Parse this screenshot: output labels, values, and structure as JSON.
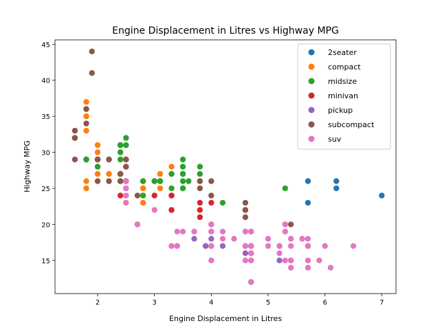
{
  "chart_data": {
    "type": "scatter",
    "title": "Engine Displacement in Litres vs Highway MPG",
    "xlabel": "Engine Displacement in Litres",
    "ylabel": "Highway MPG",
    "xlim": [
      1.25,
      7.25
    ],
    "ylim": [
      10.4,
      45.6
    ],
    "xticks": [
      2,
      3,
      4,
      5,
      6,
      7
    ],
    "yticks": [
      15,
      20,
      25,
      30,
      35,
      40,
      45
    ],
    "grid": false,
    "legend_position": "top-right",
    "series": [
      {
        "name": "2seater",
        "color": "#1f77b4",
        "points": [
          [
            5.7,
            26
          ],
          [
            5.7,
            23
          ],
          [
            6.2,
            26
          ],
          [
            6.2,
            25
          ],
          [
            7.0,
            24
          ]
        ]
      },
      {
        "name": "compact",
        "color": "#ff7f0e",
        "points": [
          [
            1.8,
            29
          ],
          [
            1.8,
            29
          ],
          [
            2.0,
            31
          ],
          [
            2.0,
            30
          ],
          [
            2.8,
            26
          ],
          [
            2.8,
            26
          ],
          [
            3.1,
            27
          ],
          [
            1.8,
            26
          ],
          [
            1.8,
            25
          ],
          [
            2.0,
            28
          ],
          [
            2.0,
            27
          ],
          [
            2.8,
            25
          ],
          [
            2.8,
            25
          ],
          [
            3.1,
            25
          ],
          [
            2.2,
            27
          ],
          [
            2.2,
            29
          ],
          [
            2.4,
            31
          ],
          [
            2.4,
            31
          ],
          [
            3.0,
            26
          ],
          [
            3.0,
            26
          ],
          [
            3.3,
            27
          ],
          [
            1.8,
            35
          ],
          [
            1.8,
            37
          ],
          [
            1.8,
            35
          ],
          [
            1.8,
            33
          ],
          [
            2.4,
            29
          ],
          [
            2.4,
            29
          ],
          [
            2.5,
            29
          ],
          [
            2.5,
            26
          ],
          [
            2.8,
            23
          ],
          [
            3.3,
            28
          ],
          [
            2.8,
            24
          ],
          [
            2.5,
            26
          ],
          [
            2.0,
            29
          ]
        ]
      },
      {
        "name": "midsize",
        "color": "#2ca02c",
        "points": [
          [
            2.8,
            24
          ],
          [
            3.1,
            26
          ],
          [
            4.2,
            23
          ],
          [
            2.4,
            27
          ],
          [
            2.4,
            30
          ],
          [
            3.1,
            26
          ],
          [
            3.5,
            29
          ],
          [
            3.6,
            26
          ],
          [
            1.8,
            29
          ],
          [
            1.8,
            29
          ],
          [
            2.0,
            28
          ],
          [
            2.0,
            29
          ],
          [
            2.4,
            26
          ],
          [
            2.4,
            26
          ],
          [
            2.5,
            26
          ],
          [
            2.5,
            25
          ],
          [
            3.3,
            27
          ],
          [
            3.3,
            25
          ],
          [
            3.5,
            27
          ],
          [
            3.5,
            25
          ],
          [
            2.4,
            31
          ],
          [
            2.4,
            31
          ],
          [
            2.5,
            32
          ],
          [
            2.5,
            31
          ],
          [
            3.0,
            26
          ],
          [
            3.5,
            27
          ],
          [
            3.5,
            25
          ],
          [
            2.2,
            29
          ],
          [
            2.4,
            29
          ],
          [
            3.0,
            26
          ],
          [
            3.8,
            28
          ],
          [
            3.8,
            26
          ],
          [
            5.3,
            25
          ],
          [
            3.5,
            26
          ],
          [
            3.5,
            28
          ],
          [
            2.0,
            29
          ],
          [
            2.8,
            26
          ],
          [
            3.8,
            27
          ],
          [
            1.8,
            29
          ],
          [
            2.4,
            27
          ],
          [
            3.1,
            26
          ]
        ]
      },
      {
        "name": "minivan",
        "color": "#d62728",
        "points": [
          [
            2.4,
            24
          ],
          [
            3.0,
            24
          ],
          [
            3.3,
            22
          ],
          [
            3.3,
            22
          ],
          [
            3.3,
            24
          ],
          [
            3.3,
            24
          ],
          [
            3.3,
            24
          ],
          [
            3.8,
            22
          ],
          [
            3.8,
            21
          ],
          [
            3.8,
            23
          ],
          [
            4.0,
            23
          ]
        ]
      },
      {
        "name": "pickup",
        "color": "#9467bd",
        "points": [
          [
            3.7,
            18
          ],
          [
            3.9,
            17
          ],
          [
            3.9,
            17
          ],
          [
            4.7,
            16
          ],
          [
            4.7,
            16
          ],
          [
            4.7,
            17
          ],
          [
            4.7,
            17
          ],
          [
            4.7,
            12
          ],
          [
            5.2,
            17
          ],
          [
            5.2,
            15
          ],
          [
            4.0,
            17
          ],
          [
            4.0,
            18
          ],
          [
            4.2,
            17
          ],
          [
            4.6,
            16
          ],
          [
            5.4,
            15
          ]
        ]
      },
      {
        "name": "subcompact",
        "color": "#8c564b",
        "points": [
          [
            3.8,
            26
          ],
          [
            3.8,
            25
          ],
          [
            4.0,
            26
          ],
          [
            4.0,
            24
          ],
          [
            4.6,
            21
          ],
          [
            4.6,
            22
          ],
          [
            4.6,
            23
          ],
          [
            4.6,
            22
          ],
          [
            5.4,
            20
          ],
          [
            1.6,
            33
          ],
          [
            1.6,
            32
          ],
          [
            1.6,
            32
          ],
          [
            1.6,
            29
          ],
          [
            1.6,
            32
          ],
          [
            1.8,
            34
          ],
          [
            1.8,
            36
          ],
          [
            1.8,
            36
          ],
          [
            2.0,
            29
          ],
          [
            2.4,
            26
          ],
          [
            2.4,
            27
          ],
          [
            2.5,
            26
          ],
          [
            2.5,
            28
          ],
          [
            2.5,
            26
          ],
          [
            2.5,
            29
          ],
          [
            2.7,
            24
          ],
          [
            1.9,
            44
          ],
          [
            2.0,
            29
          ],
          [
            2.0,
            26
          ],
          [
            2.0,
            29
          ],
          [
            2.0,
            29
          ],
          [
            2.5,
            29
          ],
          [
            1.9,
            41
          ],
          [
            2.2,
            29
          ],
          [
            2.2,
            26
          ],
          [
            2.5,
            28
          ]
        ]
      },
      {
        "name": "suv",
        "color": "#e377c2",
        "points": [
          [
            5.3,
            20
          ],
          [
            5.3,
            15
          ],
          [
            5.3,
            20
          ],
          [
            5.7,
            17
          ],
          [
            6.0,
            17
          ],
          [
            5.7,
            17
          ],
          [
            5.7,
            15
          ],
          [
            6.5,
            17
          ],
          [
            5.3,
            19
          ],
          [
            4.0,
            17
          ],
          [
            4.0,
            19
          ],
          [
            4.6,
            17
          ],
          [
            5.0,
            17
          ],
          [
            4.2,
            19
          ],
          [
            4.7,
            16
          ],
          [
            5.4,
            15
          ],
          [
            5.4,
            18
          ],
          [
            3.7,
            19
          ],
          [
            4.7,
            17
          ],
          [
            4.7,
            12
          ],
          [
            5.7,
            14
          ],
          [
            6.1,
            14
          ],
          [
            4.0,
            17
          ],
          [
            4.2,
            18
          ],
          [
            4.4,
            18
          ],
          [
            4.6,
            15
          ],
          [
            5.4,
            17
          ],
          [
            5.4,
            18
          ],
          [
            4.7,
            15
          ],
          [
            4.7,
            19
          ],
          [
            5.7,
            17
          ],
          [
            2.5,
            26
          ],
          [
            2.7,
            20
          ],
          [
            3.4,
            17
          ],
          [
            4.0,
            20
          ],
          [
            4.7,
            17
          ],
          [
            4.7,
            19
          ],
          [
            5.7,
            18
          ],
          [
            2.7,
            20
          ],
          [
            4.0,
            20
          ],
          [
            4.0,
            19
          ],
          [
            4.0,
            15
          ],
          [
            4.6,
            17
          ],
          [
            5.0,
            18
          ],
          [
            2.5,
            25
          ],
          [
            2.5,
            24
          ],
          [
            3.0,
            22
          ],
          [
            3.3,
            17
          ],
          [
            3.4,
            19
          ],
          [
            5.9,
            15
          ],
          [
            5.2,
            16
          ],
          [
            5.2,
            17
          ],
          [
            5.6,
            18
          ],
          [
            4.0,
            20
          ],
          [
            4.6,
            19
          ],
          [
            4.6,
            17
          ],
          [
            5.4,
            14
          ],
          [
            3.5,
            19
          ],
          [
            4.7,
            12
          ],
          [
            4.7,
            15
          ],
          [
            5.6,
            18
          ],
          [
            2.7,
            20
          ],
          [
            2.5,
            23
          ],
          [
            2.5,
            26
          ],
          [
            3.3,
            17
          ],
          [
            3.4,
            17
          ]
        ]
      }
    ]
  }
}
